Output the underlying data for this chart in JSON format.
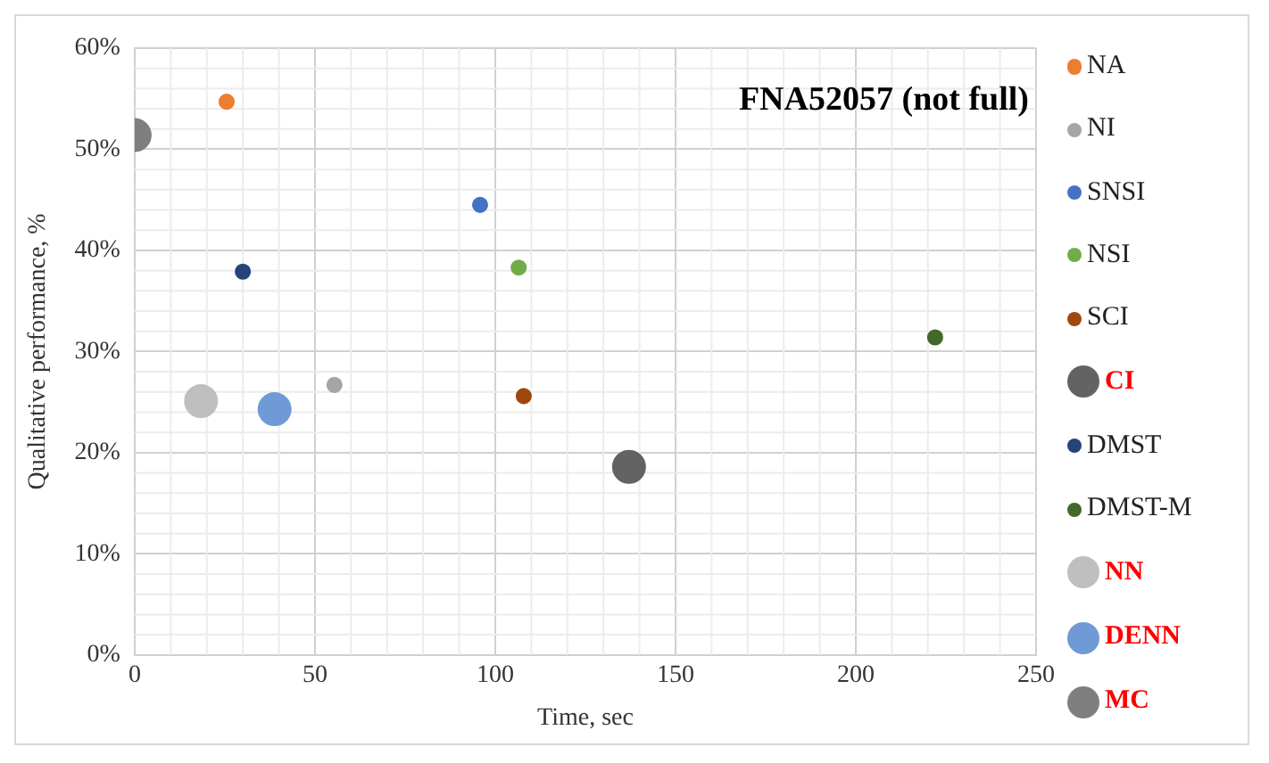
{
  "chart_data": {
    "type": "bubble",
    "title": "FNA52057 (not full)",
    "xlabel": "Time, sec",
    "ylabel": "Qualitative performance, %",
    "xlim": [
      0,
      250
    ],
    "xticks": [
      0,
      50,
      100,
      150,
      200,
      250
    ],
    "ylim": [
      0,
      60
    ],
    "yticks": [
      {
        "value": 0,
        "label": "0%"
      },
      {
        "value": 10,
        "label": "10%"
      },
      {
        "value": 20,
        "label": "20%"
      },
      {
        "value": 30,
        "label": "30%"
      },
      {
        "value": 40,
        "label": "40%"
      },
      {
        "value": 50,
        "label": "50%"
      },
      {
        "value": 60,
        "label": "60%"
      }
    ],
    "grid": true,
    "legend": "right",
    "series": [
      {
        "name": "NA",
        "color": "#ed7d31",
        "x": [
          25.5
        ],
        "values": [
          54.7
        ],
        "sizes": [
          0.2
        ]
      },
      {
        "name": "NI",
        "color": "#a5a5a5",
        "x": [
          55.4
        ],
        "values": [
          26.7
        ],
        "sizes": [
          0.2
        ]
      },
      {
        "name": "SNSI",
        "color": "#4472c4",
        "x": [
          95.8
        ],
        "values": [
          44.5
        ],
        "sizes": [
          0.2
        ]
      },
      {
        "name": "NSI",
        "color": "#70ad47",
        "x": [
          106.5
        ],
        "values": [
          38.3
        ],
        "sizes": [
          0.2
        ]
      },
      {
        "name": "SCI",
        "color": "#9e480e",
        "x": [
          107.9
        ],
        "values": [
          25.6
        ],
        "sizes": [
          0.2
        ]
      },
      {
        "name": "CI",
        "color": "#636363",
        "x": [
          137.1
        ],
        "values": [
          18.6
        ],
        "sizes": [
          1
        ]
      },
      {
        "name": "DMST",
        "color": "#264478",
        "x": [
          30
        ],
        "values": [
          37.9
        ],
        "sizes": [
          0.2
        ]
      },
      {
        "name": "DMST-M",
        "color": "#43682b",
        "x": [
          222
        ],
        "values": [
          31.4
        ],
        "sizes": [
          0.2
        ]
      },
      {
        "name": "NN",
        "color": "#bfbfbf",
        "x": [
          18.4
        ],
        "values": [
          25.1
        ],
        "sizes": [
          1
        ]
      },
      {
        "name": "DENN",
        "color": "#6f9ad6",
        "x": [
          38.8
        ],
        "values": [
          24.3
        ],
        "sizes": [
          1
        ]
      },
      {
        "name": "MC",
        "color": "#7f7f7f",
        "x": [
          0
        ],
        "values": [
          51.4
        ],
        "sizes": [
          1
        ]
      }
    ]
  }
}
